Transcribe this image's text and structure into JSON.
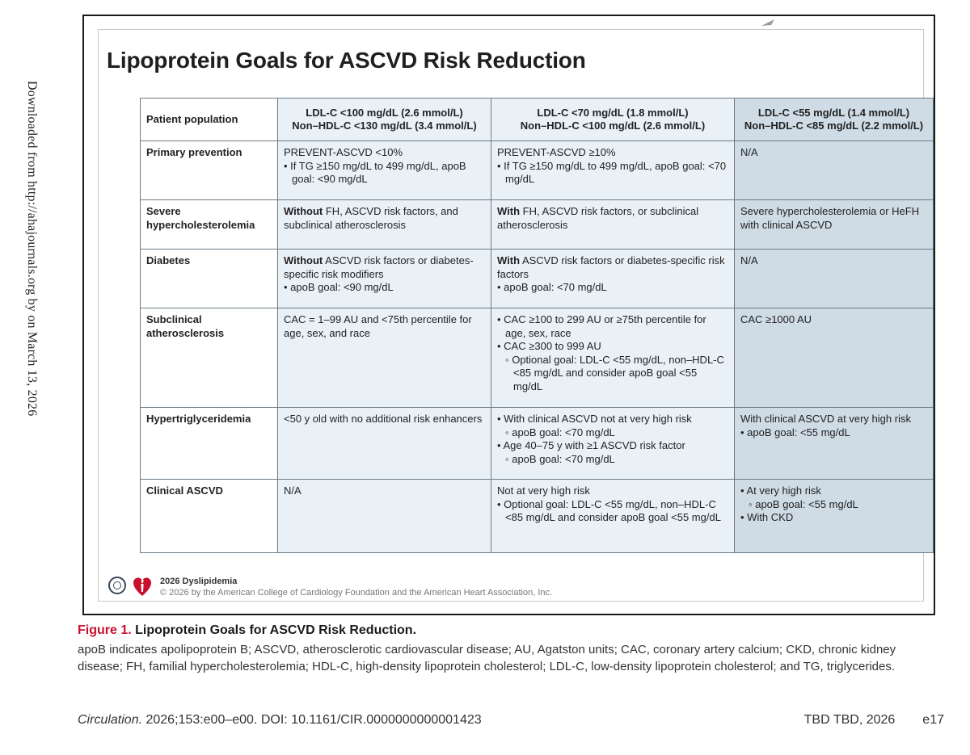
{
  "side_note": "Downloaded from http://ahajournals.org by on March 13, 2026",
  "figure": {
    "title": "Lipoprotein Goals for ASCVD Risk Reduction",
    "columns": {
      "population": "Patient population",
      "goal1_line1": "LDL-C <100 mg/dL (2.6 mmol/L)",
      "goal1_line2": "Non–HDL-C <130 mg/dL (3.4 mmol/L)",
      "goal2_line1": "LDL-C <70 mg/dL (1.8 mmol/L)",
      "goal2_line2": "Non–HDL-C <100 mg/dL (2.6 mmol/L)",
      "goal3_line1": "LDL-C <55 mg/dL (1.4 mmol/L)",
      "goal3_line2": "Non–HDL-C <85 mg/dL (2.2 mmol/L)"
    },
    "rows": {
      "primary": {
        "label": "Primary prevention",
        "c1_line1": "PREVENT-ASCVD <10%",
        "c1_bullet": "• If TG ≥150 mg/dL to 499 mg/dL, apoB goal: <90 mg/dL",
        "c2_line1": "PREVENT-ASCVD ≥10%",
        "c2_bullet": "• If TG ≥150 mg/dL to 499 mg/dL, apoB goal: <70 mg/dL",
        "c3": "N/A"
      },
      "severe": {
        "label": "Severe hypercholesterolemia",
        "c1_strong": "Without",
        "c1_rest": " FH, ASCVD risk factors, and subclinical atherosclerosis",
        "c2_strong": "With",
        "c2_rest": " FH, ASCVD risk factors, or subclinical atherosclerosis",
        "c3": "Severe hypercholesterolemia or HeFH with clinical ASCVD"
      },
      "diabetes": {
        "label": "Diabetes",
        "c1_strong": "Without",
        "c1_rest": " ASCVD risk factors or diabetes-specific risk modifiers",
        "c1_bullet": "• apoB goal: <90 mg/dL",
        "c2_strong": "With",
        "c2_rest": " ASCVD risk factors or diabetes-specific risk factors",
        "c2_bullet": "• apoB goal: <70 mg/dL",
        "c3": "N/A"
      },
      "subclinical": {
        "label": "Subclinical atherosclerosis",
        "c1": "CAC = 1–99 AU and <75th percentile for age, sex, and race",
        "c2_bullet1": "• CAC ≥100 to 299 AU or ≥75th percentile for age, sex, race",
        "c2_bullet2": "• CAC ≥300 to 999 AU",
        "c2_sub": "◦ Optional goal: LDL-C <55 mg/dL, non–HDL-C <85 mg/dL and consider apoB goal <55 mg/dL",
        "c3": "CAC ≥1000 AU"
      },
      "hypertg": {
        "label": "Hypertriglyceridemia",
        "c1": "<50 y old with no additional risk enhancers",
        "c2_bullet1": "• With clinical ASCVD not at very high risk",
        "c2_sub1": "◦ apoB goal: <70 mg/dL",
        "c2_bullet2": "• Age 40–75 y with ≥1 ASCVD risk factor",
        "c2_sub2": "◦ apoB goal: <70 mg/dL",
        "c3_line1": "With clinical ASCVD at very high risk",
        "c3_bullet": "• apoB goal: <55 mg/dL"
      },
      "clinical": {
        "label": "Clinical ASCVD",
        "c1": "N/A",
        "c2_line1": "Not at very high risk",
        "c2_bullet": "• Optional goal: LDL-C <55 mg/dL, non–HDL-C <85 mg/dL and consider apoB goal <55 mg/dL",
        "c3_bullet1": "• At very high risk",
        "c3_sub": "◦ apoB goal: <55 mg/dL",
        "c3_bullet2": "• With CKD"
      }
    },
    "footer": {
      "name": "2026 Dyslipidemia",
      "copyright": "© 2026 by the American College of Cardiology Foundation and the American Heart Association, Inc."
    }
  },
  "caption": {
    "label": "Figure 1.",
    "title": " Lipoprotein Goals for ASCVD Risk Reduction.",
    "body": "apoB indicates apolipoprotein B; ASCVD, atherosclerotic cardiovascular disease; AU, Agatston units; CAC, coronary artery calcium; CKD, chronic kidney disease; FH, familial hypercholesterolemia; HDL-C, high-density lipoprotein cholesterol; LDL-C, low-density lipoprotein cholesterol; and TG, triglycerides."
  },
  "page_footer": {
    "journal": "Circulation.",
    "citation": " 2026;153:e00–e00. DOI: 10.1161/CIR.0000000000001423",
    "date": "TBD TBD, 2026",
    "page": "e17"
  }
}
